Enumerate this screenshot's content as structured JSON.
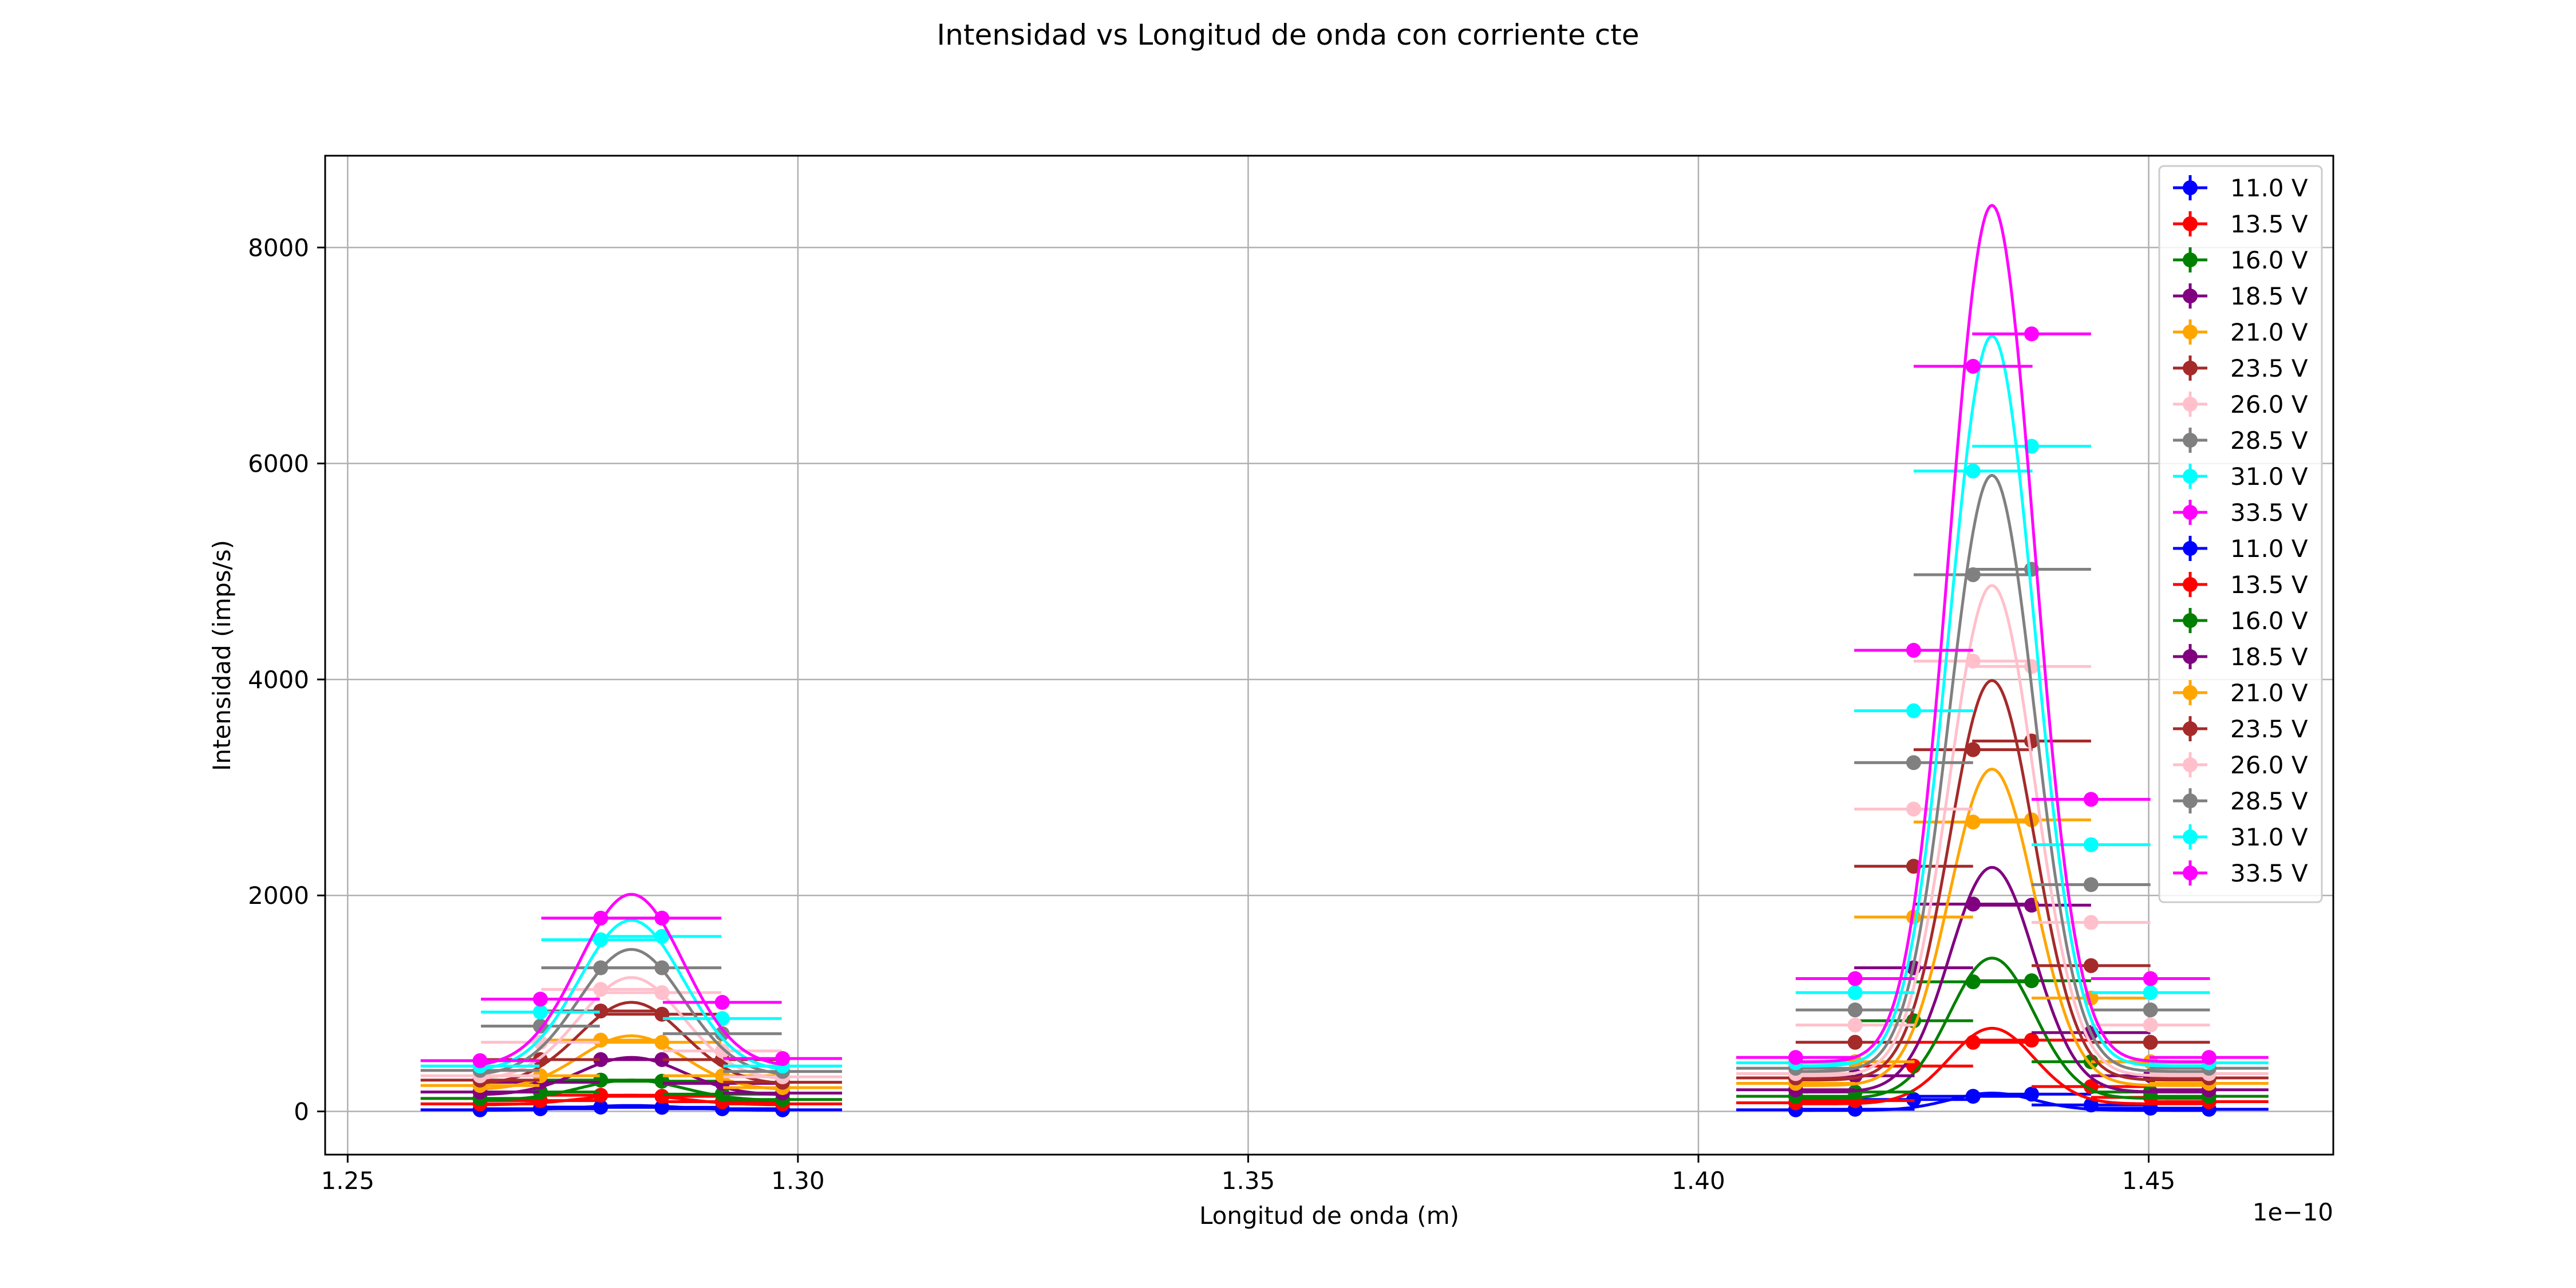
{
  "figure": {
    "title": "Intensidad vs Longitud de onda con corriente cte",
    "xlabel": "Longitud de onda (m)",
    "ylabel": "Intensidad (imps/s)",
    "x_offset_label": "1e−10"
  },
  "chart_data": {
    "type": "scatter",
    "title": "Intensidad vs Longitud de onda con corriente cte",
    "xlabel": "Longitud de onda (m)",
    "ylabel": "Intensidad (imps/s)",
    "x_scale_note": "1e−10",
    "xlim": [
      1.2475,
      1.4705
    ],
    "ylim": [
      -400,
      8850
    ],
    "xticks": [
      1.25,
      1.3,
      1.35,
      1.4,
      1.45
    ],
    "xtick_labels": [
      "1.25",
      "1.30",
      "1.35",
      "1.40",
      "1.45"
    ],
    "yticks": [
      0,
      2000,
      4000,
      6000,
      8000
    ],
    "ytick_labels": [
      "0",
      "2000",
      "4000",
      "6000",
      "8000"
    ],
    "grid": true,
    "legend_position": "top-right",
    "x_error": 0.0066,
    "peak1_x": [
      1.2647,
      1.2714,
      1.2781,
      1.2849,
      1.2916,
      1.2983
    ],
    "peak2_x": [
      1.4108,
      1.4174,
      1.4239,
      1.4305,
      1.437,
      1.4436,
      1.4502,
      1.4567
    ],
    "series": [
      {
        "name": "11.0 V",
        "color": "#0000ff",
        "peak1_y": [
          15,
          25,
          40,
          38,
          25,
          15
        ],
        "peak2_y": [
          15,
          20,
          110,
          140,
          160,
          60,
          30,
          20
        ],
        "fit1": {
          "amp": 45,
          "center": 1.2815,
          "sigma": 0.0058,
          "base": 10
        },
        "fit2": {
          "amp": 160,
          "center": 1.4326,
          "sigma": 0.0047,
          "base": 10
        }
      },
      {
        "name": "13.5 V",
        "color": "#ff0000",
        "peak1_y": [
          70,
          100,
          150,
          140,
          90,
          70
        ],
        "peak2_y": [
          80,
          100,
          420,
          640,
          660,
          230,
          130,
          90
        ],
        "fit1": {
          "amp": 90,
          "center": 1.2815,
          "sigma": 0.0058,
          "base": 60
        },
        "fit2": {
          "amp": 700,
          "center": 1.4326,
          "sigma": 0.0047,
          "base": 70
        }
      },
      {
        "name": "16.0 V",
        "color": "#008000",
        "peak1_y": [
          120,
          180,
          290,
          280,
          160,
          110
        ],
        "peak2_y": [
          140,
          180,
          840,
          1200,
          1210,
          460,
          180,
          140
        ],
        "fit1": {
          "amp": 190,
          "center": 1.2815,
          "sigma": 0.0058,
          "base": 100
        },
        "fit2": {
          "amp": 1300,
          "center": 1.4326,
          "sigma": 0.0047,
          "base": 120
        }
      },
      {
        "name": "18.5 V",
        "color": "#800080",
        "peak1_y": [
          180,
          270,
          480,
          480,
          260,
          170
        ],
        "peak2_y": [
          200,
          330,
          1330,
          1920,
          1910,
          730,
          330,
          200
        ],
        "fit1": {
          "amp": 350,
          "center": 1.2815,
          "sigma": 0.0058,
          "base": 150
        },
        "fit2": {
          "amp": 2080,
          "center": 1.4326,
          "sigma": 0.0047,
          "base": 180
        }
      },
      {
        "name": "21.0 V",
        "color": "#ffa500",
        "peak1_y": [
          240,
          330,
          660,
          640,
          330,
          220
        ],
        "peak2_y": [
          260,
          460,
          1800,
          2680,
          2700,
          1050,
          460,
          260
        ],
        "fit1": {
          "amp": 500,
          "center": 1.2815,
          "sigma": 0.0058,
          "base": 200
        },
        "fit2": {
          "amp": 2930,
          "center": 1.4326,
          "sigma": 0.0047,
          "base": 240
        }
      },
      {
        "name": "23.5 V",
        "color": "#a52a2a",
        "peak1_y": [
          290,
          480,
          930,
          900,
          480,
          270
        ],
        "peak2_y": [
          310,
          640,
          2270,
          3350,
          3430,
          1350,
          640,
          310
        ],
        "fit1": {
          "amp": 760,
          "center": 1.2815,
          "sigma": 0.0058,
          "base": 250
        },
        "fit2": {
          "amp": 3700,
          "center": 1.4326,
          "sigma": 0.0047,
          "base": 290
        }
      },
      {
        "name": "26.0 V",
        "color": "#ffc0cb",
        "peak1_y": [
          330,
          640,
          1130,
          1100,
          560,
          320
        ],
        "peak2_y": [
          350,
          800,
          2800,
          4170,
          4120,
          1750,
          800,
          350
        ],
        "fit1": {
          "amp": 950,
          "center": 1.2815,
          "sigma": 0.0058,
          "base": 290
        },
        "fit2": {
          "amp": 4540,
          "center": 1.4326,
          "sigma": 0.0047,
          "base": 330
        }
      },
      {
        "name": "28.5 V",
        "color": "#808080",
        "peak1_y": [
          380,
          790,
          1330,
          1330,
          720,
          370
        ],
        "peak2_y": [
          400,
          940,
          3230,
          4970,
          5020,
          2100,
          940,
          400
        ],
        "fit1": {
          "amp": 1170,
          "center": 1.2815,
          "sigma": 0.0058,
          "base": 330
        },
        "fit2": {
          "amp": 5520,
          "center": 1.4326,
          "sigma": 0.0047,
          "base": 370
        }
      },
      {
        "name": "31.0 V",
        "color": "#00ffff",
        "peak1_y": [
          420,
          920,
          1590,
          1620,
          860,
          420
        ],
        "peak2_y": [
          450,
          1100,
          3710,
          5930,
          6160,
          2470,
          1100,
          450
        ],
        "fit1": {
          "amp": 1400,
          "center": 1.2815,
          "sigma": 0.0058,
          "base": 370
        },
        "fit2": {
          "amp": 6760,
          "center": 1.4326,
          "sigma": 0.0047,
          "base": 420
        }
      },
      {
        "name": "33.5 V",
        "color": "#ff00ff",
        "peak1_y": [
          470,
          1040,
          1790,
          1790,
          1010,
          490
        ],
        "peak2_y": [
          500,
          1230,
          4270,
          6900,
          7200,
          2890,
          1230,
          500
        ],
        "fit1": {
          "amp": 1600,
          "center": 1.2815,
          "sigma": 0.0058,
          "base": 410
        },
        "fit2": {
          "amp": 7930,
          "center": 1.4326,
          "sigma": 0.0047,
          "base": 460
        }
      }
    ],
    "legend_entries": [
      "11.0 V",
      "13.5 V",
      "16.0 V",
      "18.5 V",
      "21.0 V",
      "23.5 V",
      "26.0 V",
      "28.5 V",
      "31.0 V",
      "33.5 V",
      "11.0 V",
      "13.5 V",
      "16.0 V",
      "18.5 V",
      "21.0 V",
      "23.5 V",
      "26.0 V",
      "28.5 V",
      "31.0 V",
      "33.5 V"
    ]
  }
}
